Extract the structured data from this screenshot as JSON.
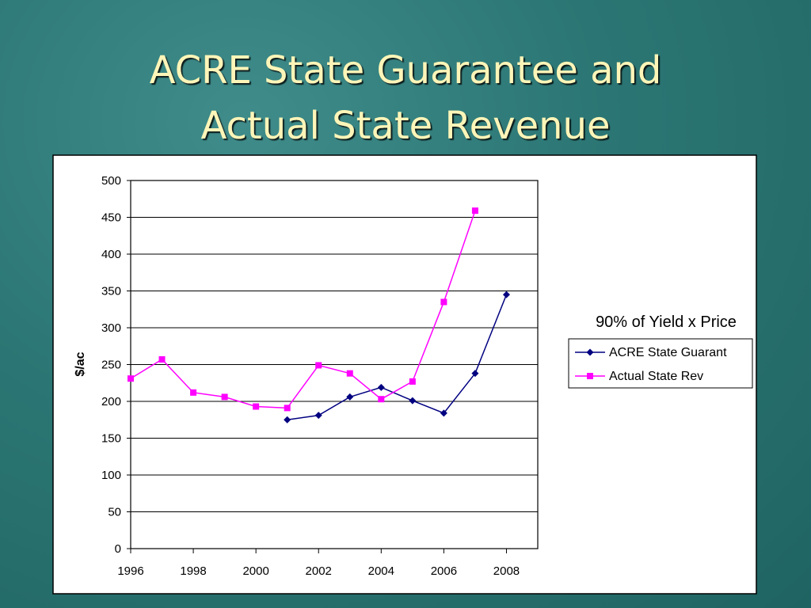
{
  "chart_data": {
    "type": "line",
    "title": [
      "ACRE State Guarantee and",
      "Actual State Revenue"
    ],
    "ylabel": "$/ac",
    "legend_title": "90% of Yield x Price",
    "legend": "right",
    "grid": true,
    "x": [
      1996,
      1997,
      1998,
      1999,
      2000,
      2001,
      2002,
      2003,
      2004,
      2005,
      2006,
      2007,
      2008
    ],
    "xlim": [
      1996,
      2009
    ],
    "xticks": [
      1996,
      1998,
      2000,
      2002,
      2004,
      2006,
      2008
    ],
    "ylim": [
      0,
      500
    ],
    "yticks": [
      0,
      50,
      100,
      150,
      200,
      250,
      300,
      350,
      400,
      450,
      500
    ],
    "series": [
      {
        "name": "ACRE State Guarant",
        "color": "#000080",
        "marker": "diamond",
        "values": [
          null,
          null,
          null,
          null,
          null,
          175,
          181,
          206,
          219,
          201,
          184,
          238,
          345
        ]
      },
      {
        "name": "Actual State Rev",
        "color": "#ff00ff",
        "marker": "square",
        "values": [
          231,
          257,
          212,
          206,
          193,
          191,
          249,
          238,
          203,
          227,
          335,
          459,
          null
        ]
      }
    ]
  }
}
